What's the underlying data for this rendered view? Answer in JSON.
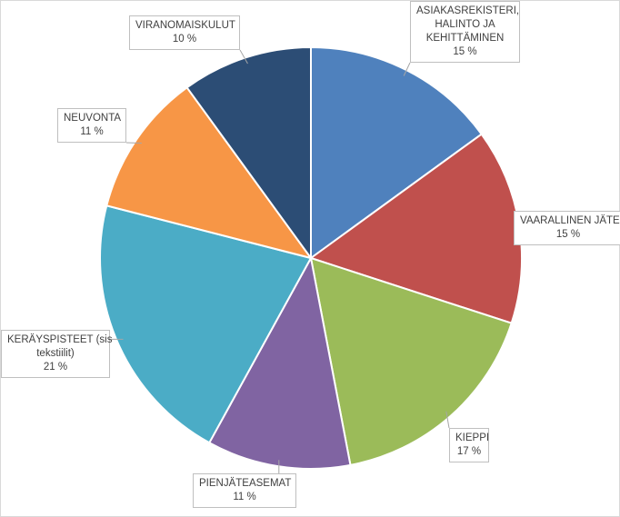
{
  "chart_data": {
    "type": "pie",
    "title": "",
    "start_angle_deg": 0,
    "direction": "clockwise",
    "slices": [
      {
        "label": "ASIAKASREKISTERI, HALINTO JA KEHITTÄMINEN",
        "label_lines": [
          "ASIAKASREKISTERI,",
          "HALINTO JA",
          "KEHITTÄMINEN"
        ],
        "value": 15,
        "value_label": "15 %",
        "color": "#4F81BD"
      },
      {
        "label": "VAARALLINEN JÄTE",
        "label_lines": [
          "VAARALLINEN JÄTE"
        ],
        "value": 15,
        "value_label": "15 %",
        "color": "#C0504D"
      },
      {
        "label": "KIEPPI",
        "label_lines": [
          "KIEPPI"
        ],
        "value": 17,
        "value_label": "17 %",
        "color": "#9BBB59"
      },
      {
        "label": "PIENJÄTEASEMAT",
        "label_lines": [
          "PIENJÄTEASEMAT"
        ],
        "value": 11,
        "value_label": "11 %",
        "color": "#8064A2"
      },
      {
        "label": "KERÄYSPISTEET (sis tekstiilit)",
        "label_lines": [
          "KERÄYSPISTEET  (sis",
          "tekstiilit)"
        ],
        "value": 21,
        "value_label": "21 %",
        "color": "#4BACC6"
      },
      {
        "label": "NEUVONTA",
        "label_lines": [
          "NEUVONTA"
        ],
        "value": 11,
        "value_label": "11 %",
        "color": "#F79646"
      },
      {
        "label": "VIRANOMAISKULUT",
        "label_lines": [
          "VIRANOMAISKULUT"
        ],
        "value": 10,
        "value_label": "10 %",
        "color": "#2C4D75"
      }
    ]
  }
}
